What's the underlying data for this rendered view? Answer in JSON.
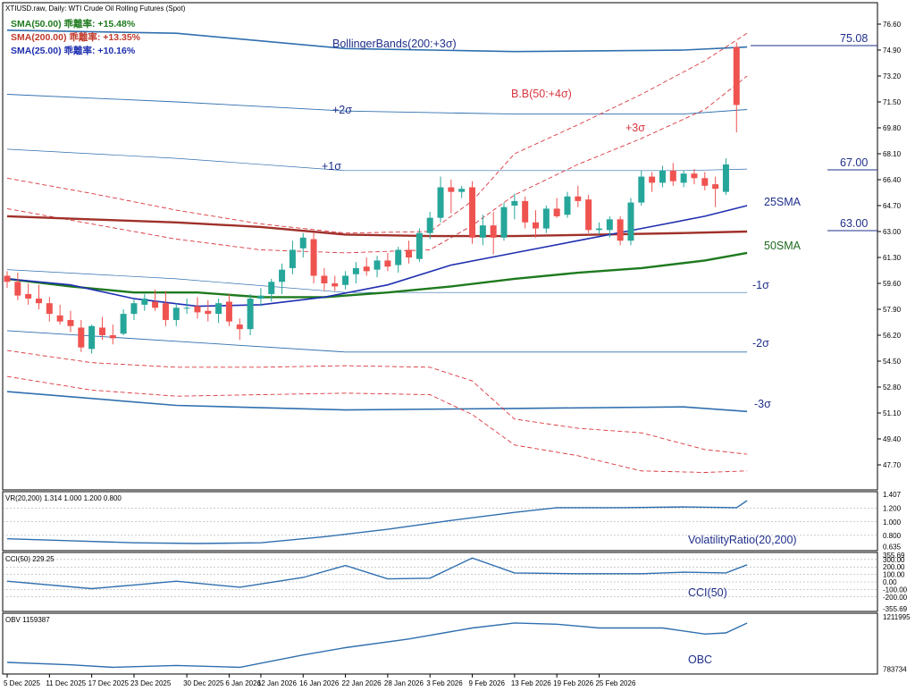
{
  "header": {
    "symbol_line": "XTIUSD.raw, Daily:  WTI Crude Oil Rolling Futures (Spot)",
    "sma_lines": [
      {
        "text": "SMA(50.00) 乖離率: +15.48%",
        "color": "#1e7a1e"
      },
      {
        "text": "SMA(200.00) 乖離率: +13.35%",
        "color": "#c0392b"
      },
      {
        "text": "SMA(25.00) 乖離率: +10.16%",
        "color": "#1f2fb0"
      }
    ]
  },
  "annotations": {
    "bollinger_label": "BollingerBands(200:+3σ)",
    "bb50_label": "B.B(50:+4σ)",
    "plus3": "+3σ",
    "plus2": "+2σ",
    "plus1": "+1σ",
    "minus1": "-1σ",
    "minus2": "-2σ",
    "minus3": "-3σ",
    "sma25": "25SMA",
    "sma50": "50SMA",
    "level_75": "75.08",
    "level_67": "67.00",
    "level_63": "63.00"
  },
  "price_axis": {
    "ticks": [
      "76.60",
      "74.90",
      "73.20",
      "71.50",
      "69.80",
      "68.10",
      "66.40",
      "64.70",
      "63.00",
      "61.30",
      "59.60",
      "57.90",
      "56.20",
      "54.50",
      "52.80",
      "51.10",
      "49.40",
      "47.70"
    ]
  },
  "x_axis": {
    "labels": [
      "5 Dec 2025",
      "11 Dec 2025",
      "17 Dec 2025",
      "23 Dec 2025",
      "30 Dec 2025",
      "6 Jan 2026",
      "12 Jan 2026",
      "16 Jan 2026",
      "22 Jan 2026",
      "28 Jan 2026",
      "3 Feb 2026",
      "9 Feb 2026",
      "13 Feb 2026",
      "19 Feb 2026",
      "25 Feb 2026"
    ]
  },
  "panels": {
    "vr": {
      "header": "VR(20,200) 1.314 1.000 1.200 0.800",
      "label": "VolatilityRatio(20,200)",
      "ticks": [
        "1.407",
        "1.200",
        "1.000",
        "0.800",
        "0.635"
      ]
    },
    "cci": {
      "header": "CCI(50) 229.25",
      "label": "CCI(50)",
      "ticks": [
        "355.69",
        "300.00",
        "200.00",
        "100.00",
        "0.00",
        "-100.00",
        "-200.00",
        "-355.69"
      ]
    },
    "obv": {
      "header": "OBV 1159387",
      "label": "OBC",
      "ticks": [
        "1211995",
        "783734"
      ]
    }
  },
  "colors": {
    "bull": "#26a69a",
    "bear": "#ef5350",
    "sma25": "#1f2fb0",
    "sma50": "#1e7a1e",
    "sma200": "#a0302a",
    "bb200": "#2f6fae",
    "bb50": "#d9363e",
    "indicator": "#2f6fae"
  },
  "chart_data": {
    "type": "candlestick",
    "title": "XTIUSD.raw, Daily: WTI Crude Oil Rolling Futures (Spot)",
    "y_range": [
      46.9,
      77.6
    ],
    "candles": [
      {
        "o": 60.1,
        "h": 60.4,
        "l": 59.3,
        "c": 59.7
      },
      {
        "o": 59.7,
        "h": 60.3,
        "l": 58.5,
        "c": 58.8
      },
      {
        "o": 58.9,
        "h": 59.6,
        "l": 58.2,
        "c": 58.6
      },
      {
        "o": 58.6,
        "h": 59.5,
        "l": 57.9,
        "c": 58.3
      },
      {
        "o": 58.3,
        "h": 58.7,
        "l": 57.1,
        "c": 57.6
      },
      {
        "o": 57.5,
        "h": 58.2,
        "l": 56.9,
        "c": 57.1
      },
      {
        "o": 57.2,
        "h": 57.8,
        "l": 56.4,
        "c": 56.8
      },
      {
        "o": 56.7,
        "h": 57.2,
        "l": 55.1,
        "c": 55.4
      },
      {
        "o": 55.3,
        "h": 56.9,
        "l": 55.0,
        "c": 56.8
      },
      {
        "o": 56.7,
        "h": 57.4,
        "l": 55.9,
        "c": 56.2
      },
      {
        "o": 56.2,
        "h": 56.9,
        "l": 55.6,
        "c": 56.0
      },
      {
        "o": 56.3,
        "h": 57.9,
        "l": 56.2,
        "c": 57.6
      },
      {
        "o": 57.6,
        "h": 58.6,
        "l": 57.2,
        "c": 58.3
      },
      {
        "o": 58.2,
        "h": 58.9,
        "l": 57.8,
        "c": 58.6
      },
      {
        "o": 58.4,
        "h": 59.2,
        "l": 57.8,
        "c": 58.0
      },
      {
        "o": 58.3,
        "h": 59.1,
        "l": 56.8,
        "c": 57.2
      },
      {
        "o": 57.2,
        "h": 58.3,
        "l": 56.8,
        "c": 58.0
      },
      {
        "o": 58.0,
        "h": 58.6,
        "l": 57.6,
        "c": 58.0
      },
      {
        "o": 58.1,
        "h": 58.7,
        "l": 57.3,
        "c": 57.7
      },
      {
        "o": 57.8,
        "h": 58.5,
        "l": 57.1,
        "c": 57.6
      },
      {
        "o": 57.6,
        "h": 58.6,
        "l": 57.0,
        "c": 58.3
      },
      {
        "o": 58.4,
        "h": 58.9,
        "l": 56.8,
        "c": 57.1
      },
      {
        "o": 56.9,
        "h": 57.3,
        "l": 55.9,
        "c": 56.6
      },
      {
        "o": 56.6,
        "h": 58.9,
        "l": 56.2,
        "c": 58.6
      },
      {
        "o": 58.6,
        "h": 59.3,
        "l": 58.1,
        "c": 58.8
      },
      {
        "o": 58.9,
        "h": 59.9,
        "l": 58.4,
        "c": 59.7
      },
      {
        "o": 59.7,
        "h": 60.9,
        "l": 58.9,
        "c": 60.5
      },
      {
        "o": 60.6,
        "h": 62.4,
        "l": 60.2,
        "c": 61.8
      },
      {
        "o": 61.9,
        "h": 62.9,
        "l": 61.3,
        "c": 62.6
      },
      {
        "o": 62.5,
        "h": 62.9,
        "l": 59.6,
        "c": 60.1
      },
      {
        "o": 60.1,
        "h": 60.6,
        "l": 59.1,
        "c": 59.6
      },
      {
        "o": 59.6,
        "h": 60.1,
        "l": 59.1,
        "c": 59.4
      },
      {
        "o": 59.5,
        "h": 60.4,
        "l": 59.2,
        "c": 60.1
      },
      {
        "o": 60.2,
        "h": 61.0,
        "l": 59.6,
        "c": 60.6
      },
      {
        "o": 60.7,
        "h": 61.3,
        "l": 60.1,
        "c": 60.4
      },
      {
        "o": 60.5,
        "h": 61.4,
        "l": 60.0,
        "c": 61.1
      },
      {
        "o": 61.1,
        "h": 61.6,
        "l": 60.4,
        "c": 60.7
      },
      {
        "o": 60.8,
        "h": 62.0,
        "l": 60.3,
        "c": 61.8
      },
      {
        "o": 61.8,
        "h": 62.4,
        "l": 60.9,
        "c": 61.3
      },
      {
        "o": 61.2,
        "h": 63.2,
        "l": 61.0,
        "c": 62.9
      },
      {
        "o": 62.9,
        "h": 64.3,
        "l": 62.5,
        "c": 63.9
      },
      {
        "o": 63.9,
        "h": 66.6,
        "l": 63.6,
        "c": 65.9
      },
      {
        "o": 65.9,
        "h": 66.4,
        "l": 64.2,
        "c": 65.6
      },
      {
        "o": 65.6,
        "h": 66.0,
        "l": 65.2,
        "c": 65.8
      },
      {
        "o": 65.9,
        "h": 66.3,
        "l": 62.2,
        "c": 62.6
      },
      {
        "o": 62.6,
        "h": 64.1,
        "l": 62.1,
        "c": 63.4
      },
      {
        "o": 63.4,
        "h": 64.3,
        "l": 61.5,
        "c": 62.6
      },
      {
        "o": 62.6,
        "h": 64.9,
        "l": 62.4,
        "c": 64.6
      },
      {
        "o": 64.7,
        "h": 65.5,
        "l": 63.8,
        "c": 65.0
      },
      {
        "o": 65.0,
        "h": 65.3,
        "l": 63.2,
        "c": 63.6
      },
      {
        "o": 63.6,
        "h": 64.4,
        "l": 62.6,
        "c": 63.2
      },
      {
        "o": 63.2,
        "h": 64.7,
        "l": 62.9,
        "c": 64.5
      },
      {
        "o": 64.5,
        "h": 65.2,
        "l": 63.9,
        "c": 64.0
      },
      {
        "o": 64.1,
        "h": 65.6,
        "l": 63.9,
        "c": 65.3
      },
      {
        "o": 65.3,
        "h": 66.0,
        "l": 64.6,
        "c": 65.0
      },
      {
        "o": 65.1,
        "h": 65.4,
        "l": 62.9,
        "c": 63.1
      },
      {
        "o": 63.1,
        "h": 63.6,
        "l": 62.8,
        "c": 63.2
      },
      {
        "o": 63.1,
        "h": 64.0,
        "l": 62.6,
        "c": 63.8
      },
      {
        "o": 63.8,
        "h": 64.0,
        "l": 62.1,
        "c": 62.4
      },
      {
        "o": 62.4,
        "h": 65.2,
        "l": 62.1,
        "c": 64.9
      },
      {
        "o": 64.9,
        "h": 67.0,
        "l": 64.7,
        "c": 66.6
      },
      {
        "o": 66.6,
        "h": 66.9,
        "l": 65.6,
        "c": 66.2
      },
      {
        "o": 66.2,
        "h": 67.3,
        "l": 65.9,
        "c": 67.0
      },
      {
        "o": 67.0,
        "h": 67.5,
        "l": 66.0,
        "c": 66.3
      },
      {
        "o": 66.2,
        "h": 67.0,
        "l": 65.9,
        "c": 66.8
      },
      {
        "o": 66.8,
        "h": 67.1,
        "l": 66.1,
        "c": 66.5
      },
      {
        "o": 66.5,
        "h": 66.9,
        "l": 65.7,
        "c": 66.0
      },
      {
        "o": 66.1,
        "h": 66.6,
        "l": 64.6,
        "c": 65.8
      },
      {
        "o": 65.6,
        "h": 67.8,
        "l": 65.4,
        "c": 67.4
      },
      {
        "o": 75.1,
        "h": 75.4,
        "l": 69.5,
        "c": 71.3
      }
    ],
    "sma25": [
      [
        0,
        59.9
      ],
      [
        6,
        59.5
      ],
      [
        12,
        58.6
      ],
      [
        18,
        58.1
      ],
      [
        24,
        58.2
      ],
      [
        30,
        58.7
      ],
      [
        36,
        59.5
      ],
      [
        42,
        60.8
      ],
      [
        48,
        61.6
      ],
      [
        54,
        62.4
      ],
      [
        60,
        63.2
      ],
      [
        66,
        64.0
      ],
      [
        70,
        64.7
      ]
    ],
    "sma50": [
      [
        0,
        59.9
      ],
      [
        6,
        59.4
      ],
      [
        12,
        59.0
      ],
      [
        18,
        59.0
      ],
      [
        24,
        58.7
      ],
      [
        30,
        58.7
      ],
      [
        36,
        59.0
      ],
      [
        42,
        59.4
      ],
      [
        48,
        59.9
      ],
      [
        54,
        60.3
      ],
      [
        60,
        60.6
      ],
      [
        66,
        61.1
      ],
      [
        70,
        61.6
      ]
    ],
    "sma200": [
      [
        0,
        64.0
      ],
      [
        8,
        63.8
      ],
      [
        16,
        63.6
      ],
      [
        24,
        63.3
      ],
      [
        32,
        62.8
      ],
      [
        40,
        62.7
      ],
      [
        48,
        62.7
      ],
      [
        56,
        62.8
      ],
      [
        64,
        62.9
      ],
      [
        70,
        63.0
      ]
    ],
    "bb200": {
      "plus3": [
        [
          0,
          76.2
        ],
        [
          16,
          76.0
        ],
        [
          32,
          75.0
        ],
        [
          48,
          74.8
        ],
        [
          64,
          74.9
        ],
        [
          70,
          75.1
        ]
      ],
      "plus2": [
        [
          0,
          72.0
        ],
        [
          16,
          71.5
        ],
        [
          32,
          70.9
        ],
        [
          48,
          70.7
        ],
        [
          64,
          70.7
        ],
        [
          70,
          71.0
        ]
      ],
      "plus1": [
        [
          0,
          68.4
        ],
        [
          16,
          67.8
        ],
        [
          32,
          67.0
        ],
        [
          48,
          67.0
        ],
        [
          64,
          67.0
        ],
        [
          70,
          67.1
        ]
      ],
      "minus1": [
        [
          0,
          60.5
        ],
        [
          16,
          59.9
        ],
        [
          32,
          59.0
        ],
        [
          48,
          59.0
        ],
        [
          64,
          59.0
        ],
        [
          70,
          59.0
        ]
      ],
      "minus2": [
        [
          0,
          56.5
        ],
        [
          16,
          55.8
        ],
        [
          32,
          55.1
        ],
        [
          48,
          55.1
        ],
        [
          64,
          55.1
        ],
        [
          70,
          55.1
        ]
      ],
      "minus3": [
        [
          0,
          52.5
        ],
        [
          16,
          51.6
        ],
        [
          32,
          51.3
        ],
        [
          48,
          51.4
        ],
        [
          64,
          51.5
        ],
        [
          70,
          51.2
        ]
      ]
    },
    "bb50": {
      "plus4": [
        [
          0,
          66.5
        ],
        [
          8,
          65.5
        ],
        [
          16,
          64.4
        ],
        [
          24,
          63.5
        ],
        [
          32,
          62.9
        ],
        [
          40,
          63.0
        ],
        [
          44,
          65.0
        ],
        [
          48,
          68.1
        ],
        [
          54,
          70.0
        ],
        [
          60,
          72.0
        ],
        [
          66,
          74.2
        ],
        [
          70,
          76.0
        ]
      ],
      "plus3": [
        [
          0,
          64.5
        ],
        [
          8,
          63.5
        ],
        [
          16,
          62.5
        ],
        [
          24,
          61.8
        ],
        [
          32,
          61.6
        ],
        [
          40,
          61.8
        ],
        [
          44,
          63.4
        ],
        [
          48,
          65.4
        ],
        [
          54,
          67.4
        ],
        [
          60,
          69.1
        ],
        [
          66,
          71.0
        ],
        [
          70,
          73.2
        ]
      ],
      "minus3": [
        [
          0,
          55.2
        ],
        [
          8,
          54.4
        ],
        [
          16,
          54.1
        ],
        [
          24,
          54.1
        ],
        [
          32,
          54.2
        ],
        [
          40,
          54.1
        ],
        [
          44,
          53.2
        ],
        [
          48,
          50.7
        ],
        [
          54,
          50.1
        ],
        [
          60,
          49.8
        ],
        [
          66,
          48.7
        ],
        [
          70,
          48.4
        ]
      ],
      "minus4": [
        [
          0,
          53.5
        ],
        [
          8,
          52.6
        ],
        [
          16,
          52.2
        ],
        [
          24,
          52.3
        ],
        [
          32,
          52.4
        ],
        [
          40,
          52.3
        ],
        [
          44,
          51.0
        ],
        [
          48,
          49.0
        ],
        [
          54,
          48.3
        ],
        [
          60,
          47.3
        ],
        [
          66,
          47.2
        ],
        [
          70,
          47.3
        ]
      ]
    },
    "vr": [
      [
        0,
        0.75
      ],
      [
        6,
        0.72
      ],
      [
        12,
        0.69
      ],
      [
        18,
        0.68
      ],
      [
        24,
        0.69
      ],
      [
        30,
        0.78
      ],
      [
        36,
        0.89
      ],
      [
        42,
        1.02
      ],
      [
        48,
        1.14
      ],
      [
        52,
        1.21
      ],
      [
        58,
        1.21
      ],
      [
        64,
        1.22
      ],
      [
        69,
        1.21
      ],
      [
        70,
        1.314
      ]
    ],
    "cci": [
      [
        0,
        10
      ],
      [
        8,
        -90
      ],
      [
        12,
        -40
      ],
      [
        16,
        10
      ],
      [
        22,
        -70
      ],
      [
        28,
        60
      ],
      [
        32,
        220
      ],
      [
        36,
        40
      ],
      [
        40,
        50
      ],
      [
        44,
        320
      ],
      [
        48,
        120
      ],
      [
        54,
        110
      ],
      [
        60,
        110
      ],
      [
        64,
        130
      ],
      [
        68,
        120
      ],
      [
        70,
        229.25
      ]
    ],
    "obv": [
      [
        0,
        840000
      ],
      [
        6,
        820000
      ],
      [
        10,
        800000
      ],
      [
        16,
        815000
      ],
      [
        22,
        800000
      ],
      [
        28,
        900000
      ],
      [
        32,
        960000
      ],
      [
        38,
        1030000
      ],
      [
        44,
        1120000
      ],
      [
        48,
        1160000
      ],
      [
        52,
        1150000
      ],
      [
        56,
        1120000
      ],
      [
        62,
        1120000
      ],
      [
        66,
        1070000
      ],
      [
        68,
        1080000
      ],
      [
        70,
        1159387
      ]
    ]
  }
}
